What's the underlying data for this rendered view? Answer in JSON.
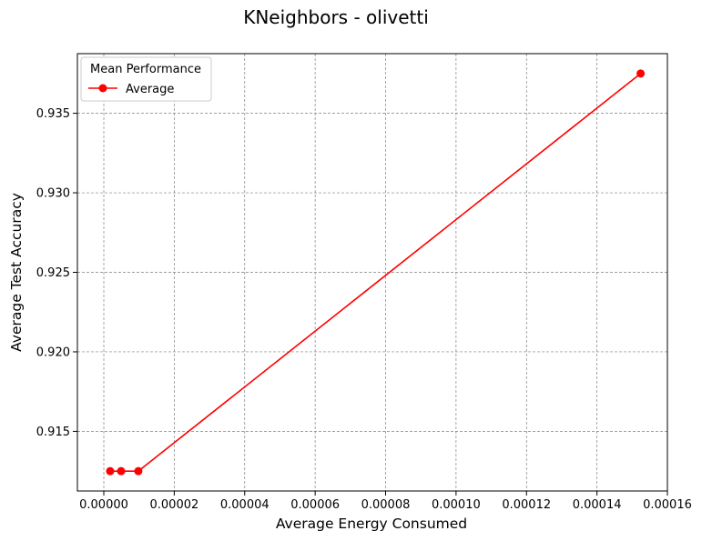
{
  "chart_data": {
    "type": "line",
    "title": "KNeighbors - olivetti",
    "xlabel": "Average Energy Consumed",
    "ylabel": "Average Test Accuracy",
    "xlim": [
      -7.5e-06,
      0.00016
    ],
    "ylim": [
      0.91125,
      0.93875
    ],
    "xticks": [
      0,
      2e-05,
      4e-05,
      6e-05,
      8e-05,
      0.0001,
      0.00012,
      0.00014,
      0.00016
    ],
    "xtick_labels": [
      "0.00000",
      "0.00002",
      "0.00004",
      "0.00006",
      "0.00008",
      "0.00010",
      "0.00012",
      "0.00014",
      "0.00016"
    ],
    "yticks": [
      0.915,
      0.92,
      0.925,
      0.93,
      0.935
    ],
    "ytick_labels": [
      "0.915",
      "0.920",
      "0.925",
      "0.930",
      "0.935"
    ],
    "grid": true,
    "legend": {
      "title": "Mean Performance",
      "placement": "upper-left"
    },
    "series": [
      {
        "name": "Average",
        "color": "#ff0000",
        "marker": "circle",
        "x": [
          1.8e-06,
          4.9e-06,
          9.8e-06,
          0.0001524
        ],
        "y": [
          0.9125,
          0.9125,
          0.9125,
          0.9375
        ]
      }
    ]
  }
}
